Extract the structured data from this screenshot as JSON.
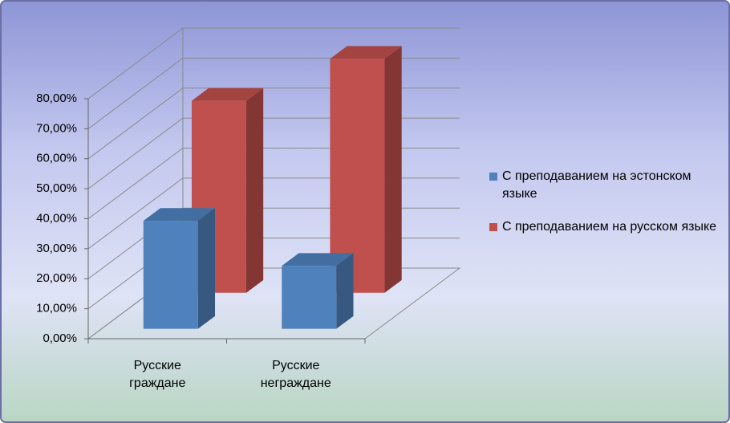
{
  "chart_data": {
    "type": "bar3d",
    "categories": [
      "Русские граждане",
      "Русские неграждане"
    ],
    "series": [
      {
        "name": "С преподаванием на эстонском языке",
        "color": "#4f81bd",
        "values": [
          36,
          21
        ]
      },
      {
        "name": "С преподаванием на русском языке",
        "color": "#c0504d",
        "values": [
          64,
          78
        ]
      }
    ],
    "ylim": [
      0,
      80
    ],
    "yticks": [
      {
        "value": 0,
        "label": "0,00%"
      },
      {
        "value": 10,
        "label": "10,00%"
      },
      {
        "value": 20,
        "label": "20,00%"
      },
      {
        "value": 30,
        "label": "30,00%"
      },
      {
        "value": 40,
        "label": "40,00%"
      },
      {
        "value": 50,
        "label": "50,00%"
      },
      {
        "value": 60,
        "label": "60,00%"
      },
      {
        "value": 70,
        "label": "70,00%"
      },
      {
        "value": 80,
        "label": "80,00%"
      }
    ],
    "grid": true,
    "legend": "right"
  }
}
